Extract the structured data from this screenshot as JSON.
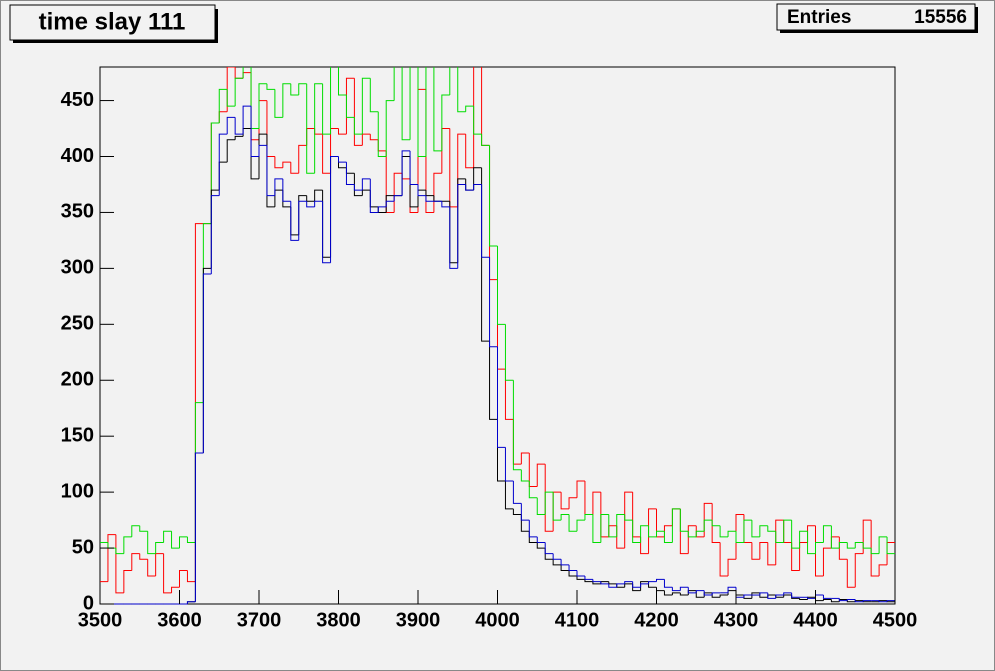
{
  "chart_data": {
    "type": "histogram",
    "title": "time slay 111",
    "stats_label": "Entries",
    "stats_value": 15556,
    "xlim": [
      3500,
      4500
    ],
    "ylim": [
      0,
      480
    ],
    "xticks": [
      3500,
      3600,
      3700,
      3800,
      3900,
      4000,
      4100,
      4200,
      4300,
      4400,
      4500
    ],
    "yticks": [
      0,
      50,
      100,
      150,
      200,
      250,
      300,
      350,
      400,
      450
    ],
    "bins": [
      3500,
      3510,
      3520,
      3530,
      3540,
      3550,
      3560,
      3570,
      3580,
      3590,
      3600,
      3610,
      3620,
      3630,
      3640,
      3650,
      3660,
      3670,
      3680,
      3690,
      3700,
      3710,
      3720,
      3730,
      3740,
      3750,
      3760,
      3770,
      3780,
      3790,
      3800,
      3810,
      3820,
      3830,
      3840,
      3850,
      3860,
      3870,
      3880,
      3890,
      3900,
      3910,
      3920,
      3930,
      3940,
      3950,
      3960,
      3970,
      3980,
      3990,
      4000,
      4010,
      4020,
      4030,
      4040,
      4050,
      4060,
      4070,
      4080,
      4090,
      4100,
      4110,
      4120,
      4130,
      4140,
      4150,
      4160,
      4170,
      4180,
      4190,
      4200,
      4210,
      4220,
      4230,
      4240,
      4250,
      4260,
      4270,
      4280,
      4290,
      4300,
      4310,
      4320,
      4330,
      4340,
      4350,
      4360,
      4370,
      4380,
      4390,
      4400,
      4410,
      4420,
      4430,
      4440,
      4450,
      4460,
      4470,
      4480,
      4490,
      4500
    ],
    "series": [
      {
        "color": "#ff0000",
        "values": [
          20,
          62,
          10,
          30,
          45,
          40,
          25,
          45,
          10,
          15,
          30,
          20,
          340,
          340,
          430,
          440,
          480,
          470,
          475,
          415,
          450,
          400,
          390,
          395,
          385,
          410,
          425,
          420,
          385,
          425,
          420,
          470,
          410,
          420,
          415,
          405,
          350,
          385,
          380,
          350,
          460,
          350,
          385,
          425,
          355,
          420,
          390,
          490,
          410,
          290,
          210,
          165,
          125,
          135,
          105,
          125,
          65,
          100,
          85,
          95,
          110,
          80,
          100,
          60,
          70,
          50,
          100,
          60,
          45,
          85,
          60,
          70,
          85,
          45,
          70,
          60,
          90,
          55,
          25,
          40,
          80,
          55,
          40,
          55,
          35,
          75,
          55,
          30,
          55,
          70,
          25,
          50,
          60,
          40,
          15,
          45,
          75,
          25,
          35,
          55
        ]
      },
      {
        "color": "#00dd00",
        "values": [
          55,
          50,
          45,
          60,
          70,
          65,
          45,
          55,
          65,
          50,
          60,
          55,
          180,
          340,
          430,
          460,
          445,
          470,
          485,
          425,
          465,
          460,
          435,
          465,
          455,
          465,
          385,
          465,
          420,
          485,
          455,
          435,
          420,
          470,
          440,
          400,
          450,
          485,
          415,
          485,
          400,
          485,
          405,
          455,
          485,
          440,
          445,
          420,
          410,
          320,
          250,
          200,
          120,
          110,
          95,
          80,
          100,
          75,
          80,
          65,
          75,
          80,
          55,
          80,
          60,
          80,
          75,
          55,
          70,
          60,
          65,
          55,
          85,
          65,
          60,
          65,
          75,
          70,
          60,
          65,
          55,
          75,
          60,
          70,
          65,
          55,
          75,
          50,
          65,
          45,
          55,
          70,
          50,
          55,
          50,
          55,
          50,
          45,
          60,
          45
        ]
      },
      {
        "color": "#000000",
        "values": [
          0,
          0,
          0,
          0,
          0,
          0,
          0,
          0,
          0,
          0,
          0,
          2,
          135,
          300,
          370,
          395,
          415,
          418,
          425,
          380,
          420,
          355,
          370,
          355,
          330,
          365,
          360,
          370,
          310,
          400,
          390,
          385,
          365,
          370,
          355,
          350,
          365,
          365,
          400,
          355,
          370,
          365,
          360,
          360,
          305,
          380,
          370,
          390,
          235,
          165,
          110,
          85,
          80,
          65,
          55,
          50,
          40,
          35,
          30,
          25,
          22,
          20,
          18,
          20,
          18,
          15,
          18,
          12,
          20,
          15,
          12,
          8,
          10,
          8,
          12,
          6,
          10,
          6,
          8,
          12,
          8,
          5,
          10,
          6,
          8,
          6,
          8,
          5,
          4,
          6,
          3,
          4,
          2,
          4,
          2,
          3,
          2,
          2,
          3,
          2
        ]
      },
      {
        "color": "#0000cc",
        "values": [
          0,
          0,
          0,
          0,
          0,
          0,
          0,
          0,
          0,
          0,
          0,
          2,
          135,
          295,
          365,
          420,
          435,
          420,
          445,
          400,
          410,
          365,
          380,
          360,
          325,
          360,
          355,
          360,
          305,
          400,
          395,
          375,
          370,
          380,
          350,
          355,
          360,
          365,
          405,
          375,
          365,
          360,
          360,
          355,
          300,
          375,
          370,
          375,
          310,
          230,
          140,
          110,
          90,
          75,
          60,
          55,
          45,
          40,
          35,
          30,
          25,
          22,
          20,
          18,
          15,
          18,
          20,
          15,
          18,
          20,
          22,
          15,
          12,
          15,
          10,
          12,
          8,
          10,
          10,
          15,
          6,
          8,
          8,
          10,
          5,
          8,
          10,
          6,
          6,
          5,
          8,
          5,
          5,
          3,
          4,
          2,
          3,
          3,
          2,
          3
        ]
      }
    ]
  }
}
